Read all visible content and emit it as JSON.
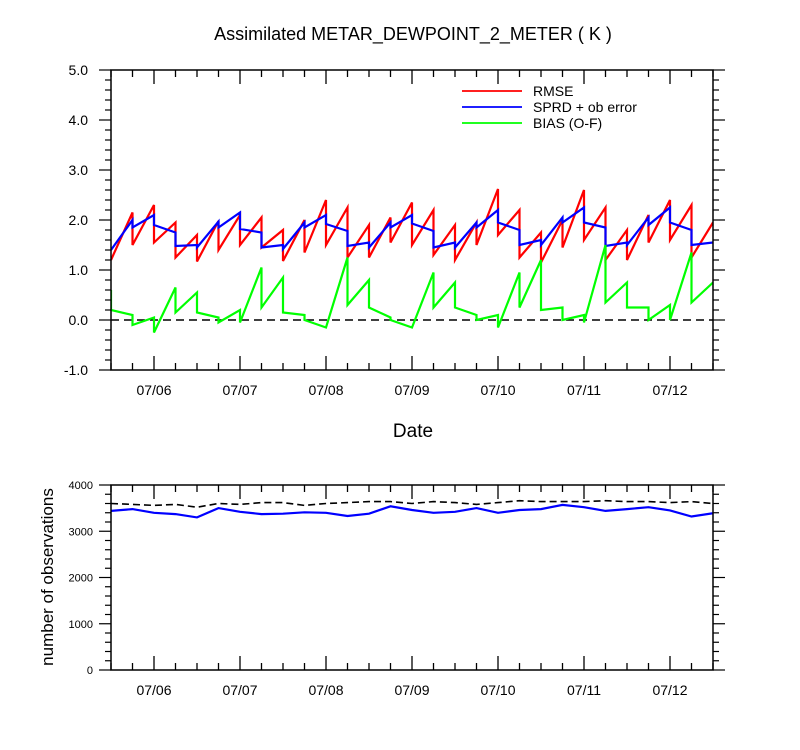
{
  "chart_data": [
    {
      "type": "line",
      "title": "Assimilated METAR_DEWPOINT_2_METER ( K )",
      "xlabel": "Date",
      "ylabel": "",
      "xlim": [
        5.5,
        12.5
      ],
      "ylim": [
        -1.0,
        5.0
      ],
      "yticks": [
        -1.0,
        0.0,
        1.0,
        2.0,
        3.0,
        4.0,
        5.0
      ],
      "ytick_labels": [
        "-1.0",
        "0.0",
        "1.0",
        "2.0",
        "3.0",
        "4.0",
        "5.0"
      ],
      "xticks": [
        6,
        7,
        8,
        9,
        10,
        11,
        12
      ],
      "xtick_labels": [
        "07/06",
        "07/07",
        "07/08",
        "07/09",
        "07/10",
        "07/11",
        "07/12"
      ],
      "reference_line": {
        "y": 0.0,
        "style": "dashed",
        "color": "#000000"
      },
      "legend_position": "top-right",
      "series": [
        {
          "name": "RMSE",
          "color": "#ff0000",
          "points": [
            [
              5.5,
              1.2
            ],
            [
              5.75,
              2.15
            ],
            [
              5.75,
              1.5
            ],
            [
              6.0,
              2.3
            ],
            [
              6.0,
              1.55
            ],
            [
              6.25,
              1.95
            ],
            [
              6.25,
              1.25
            ],
            [
              6.5,
              1.7
            ],
            [
              6.5,
              1.17
            ],
            [
              6.75,
              1.98
            ],
            [
              6.75,
              1.4
            ],
            [
              7.0,
              2.1
            ],
            [
              7.0,
              1.5
            ],
            [
              7.25,
              2.05
            ],
            [
              7.25,
              1.45
            ],
            [
              7.5,
              1.8
            ],
            [
              7.5,
              1.18
            ],
            [
              7.75,
              2.0
            ],
            [
              7.75,
              1.35
            ],
            [
              8.0,
              2.4
            ],
            [
              8.0,
              1.5
            ],
            [
              8.25,
              2.25
            ],
            [
              8.25,
              1.25
            ],
            [
              8.5,
              1.9
            ],
            [
              8.5,
              1.25
            ],
            [
              8.75,
              2.05
            ],
            [
              8.75,
              1.55
            ],
            [
              9.0,
              2.35
            ],
            [
              9.0,
              1.5
            ],
            [
              9.25,
              2.2
            ],
            [
              9.25,
              1.3
            ],
            [
              9.5,
              1.9
            ],
            [
              9.5,
              1.2
            ],
            [
              9.75,
              1.95
            ],
            [
              9.75,
              1.5
            ],
            [
              10.0,
              2.62
            ],
            [
              10.0,
              1.7
            ],
            [
              10.25,
              2.2
            ],
            [
              10.25,
              1.25
            ],
            [
              10.5,
              1.75
            ],
            [
              10.5,
              1.15
            ],
            [
              10.75,
              2.0
            ],
            [
              10.75,
              1.45
            ],
            [
              11.0,
              2.6
            ],
            [
              11.0,
              1.6
            ],
            [
              11.25,
              2.25
            ],
            [
              11.25,
              1.2
            ],
            [
              11.5,
              1.8
            ],
            [
              11.5,
              1.2
            ],
            [
              11.75,
              2.1
            ],
            [
              11.75,
              1.55
            ],
            [
              12.0,
              2.4
            ],
            [
              12.0,
              1.6
            ],
            [
              12.25,
              2.3
            ],
            [
              12.25,
              1.25
            ],
            [
              12.5,
              1.95
            ]
          ]
        },
        {
          "name": "SPRD + ob error",
          "color": "#0000ff",
          "points": [
            [
              5.5,
              1.4
            ],
            [
              5.75,
              2.0
            ],
            [
              5.75,
              1.85
            ],
            [
              6.0,
              2.1
            ],
            [
              6.0,
              1.9
            ],
            [
              6.25,
              1.75
            ],
            [
              6.25,
              1.48
            ],
            [
              6.5,
              1.5
            ],
            [
              6.5,
              1.45
            ],
            [
              6.75,
              1.97
            ],
            [
              6.75,
              1.85
            ],
            [
              7.0,
              2.15
            ],
            [
              7.0,
              1.82
            ],
            [
              7.25,
              1.75
            ],
            [
              7.25,
              1.45
            ],
            [
              7.5,
              1.5
            ],
            [
              7.5,
              1.42
            ],
            [
              7.75,
              1.95
            ],
            [
              7.75,
              1.85
            ],
            [
              8.0,
              2.1
            ],
            [
              8.0,
              1.92
            ],
            [
              8.25,
              1.78
            ],
            [
              8.25,
              1.48
            ],
            [
              8.5,
              1.55
            ],
            [
              8.5,
              1.45
            ],
            [
              8.75,
              1.95
            ],
            [
              8.75,
              1.85
            ],
            [
              9.0,
              2.1
            ],
            [
              9.0,
              1.93
            ],
            [
              9.25,
              1.78
            ],
            [
              9.25,
              1.45
            ],
            [
              9.5,
              1.55
            ],
            [
              9.5,
              1.45
            ],
            [
              9.75,
              1.95
            ],
            [
              9.75,
              1.85
            ],
            [
              10.0,
              2.2
            ],
            [
              10.0,
              1.95
            ],
            [
              10.25,
              1.8
            ],
            [
              10.25,
              1.5
            ],
            [
              10.5,
              1.6
            ],
            [
              10.5,
              1.5
            ],
            [
              10.75,
              2.05
            ],
            [
              10.75,
              1.95
            ],
            [
              11.0,
              2.25
            ],
            [
              11.0,
              1.95
            ],
            [
              11.25,
              1.85
            ],
            [
              11.25,
              1.48
            ],
            [
              11.5,
              1.55
            ],
            [
              11.5,
              1.5
            ],
            [
              11.75,
              2.05
            ],
            [
              11.75,
              1.9
            ],
            [
              12.0,
              2.25
            ],
            [
              12.0,
              1.95
            ],
            [
              12.25,
              1.8
            ],
            [
              12.25,
              1.5
            ],
            [
              12.5,
              1.55
            ]
          ]
        },
        {
          "name": "BIAS (O-F)",
          "color": "#00ff00",
          "points": [
            [
              5.5,
              0.6
            ],
            [
              5.5,
              0.2
            ],
            [
              5.75,
              0.1
            ],
            [
              5.75,
              -0.1
            ],
            [
              6.0,
              0.05
            ],
            [
              6.0,
              -0.25
            ],
            [
              6.25,
              0.65
            ],
            [
              6.25,
              0.15
            ],
            [
              6.5,
              0.55
            ],
            [
              6.5,
              0.15
            ],
            [
              6.75,
              0.05
            ],
            [
              6.75,
              -0.05
            ],
            [
              7.0,
              0.2
            ],
            [
              7.0,
              -0.05
            ],
            [
              7.25,
              1.05
            ],
            [
              7.25,
              0.25
            ],
            [
              7.5,
              0.85
            ],
            [
              7.5,
              0.15
            ],
            [
              7.75,
              0.1
            ],
            [
              7.75,
              0.0
            ],
            [
              8.0,
              -0.15
            ],
            [
              8.25,
              1.25
            ],
            [
              8.25,
              0.3
            ],
            [
              8.5,
              0.8
            ],
            [
              8.5,
              0.25
            ],
            [
              8.75,
              0.05
            ],
            [
              8.75,
              0.0
            ],
            [
              9.0,
              -0.15
            ],
            [
              9.25,
              0.95
            ],
            [
              9.25,
              0.25
            ],
            [
              9.5,
              0.75
            ],
            [
              9.5,
              0.25
            ],
            [
              9.75,
              0.1
            ],
            [
              9.75,
              0.0
            ],
            [
              10.0,
              0.1
            ],
            [
              10.0,
              -0.15
            ],
            [
              10.25,
              0.95
            ],
            [
              10.25,
              0.25
            ],
            [
              10.5,
              1.2
            ],
            [
              10.5,
              0.2
            ],
            [
              10.75,
              0.25
            ],
            [
              10.75,
              0.0
            ],
            [
              11.0,
              0.1
            ],
            [
              11.0,
              -0.05
            ],
            [
              11.25,
              1.5
            ],
            [
              11.25,
              0.35
            ],
            [
              11.5,
              0.75
            ],
            [
              11.5,
              0.25
            ],
            [
              11.75,
              0.25
            ],
            [
              11.75,
              0.0
            ],
            [
              12.0,
              0.3
            ],
            [
              12.0,
              0.0
            ],
            [
              12.25,
              1.35
            ],
            [
              12.25,
              0.35
            ],
            [
              12.5,
              0.75
            ]
          ]
        }
      ]
    },
    {
      "type": "line",
      "title": "",
      "xlabel": "",
      "ylabel": "number of observations",
      "xlim": [
        5.5,
        12.5
      ],
      "ylim": [
        0,
        4000
      ],
      "yticks": [
        0,
        1000,
        2000,
        3000,
        4000
      ],
      "ytick_labels": [
        "0",
        "1000",
        "2000",
        "3000",
        "4000"
      ],
      "xticks": [
        6,
        7,
        8,
        9,
        10,
        11,
        12
      ],
      "xtick_labels": [
        "07/06",
        "07/07",
        "07/08",
        "07/09",
        "07/10",
        "07/11",
        "07/12"
      ],
      "series": [
        {
          "style": "dashed",
          "color": "#000000",
          "x": [
            5.5,
            5.75,
            6.0,
            6.25,
            6.5,
            6.75,
            7.0,
            7.25,
            7.5,
            7.75,
            8.0,
            8.25,
            8.5,
            8.75,
            9.0,
            9.25,
            9.5,
            9.75,
            10.0,
            10.25,
            10.5,
            10.75,
            11.0,
            11.25,
            11.5,
            11.75,
            12.0,
            12.25,
            12.5
          ],
          "y": [
            3600,
            3580,
            3560,
            3580,
            3520,
            3600,
            3580,
            3620,
            3620,
            3560,
            3600,
            3620,
            3640,
            3640,
            3600,
            3640,
            3620,
            3580,
            3620,
            3660,
            3640,
            3640,
            3640,
            3660,
            3640,
            3640,
            3620,
            3640,
            3600
          ]
        },
        {
          "style": "solid",
          "color": "#0000ff",
          "x": [
            5.5,
            5.75,
            6.0,
            6.25,
            6.5,
            6.75,
            7.0,
            7.25,
            7.5,
            7.75,
            8.0,
            8.25,
            8.5,
            8.75,
            9.0,
            9.25,
            9.5,
            9.75,
            10.0,
            10.25,
            10.5,
            10.75,
            11.0,
            11.25,
            11.5,
            11.75,
            12.0,
            12.25,
            12.5
          ],
          "y": [
            3440,
            3480,
            3400,
            3370,
            3300,
            3500,
            3420,
            3370,
            3380,
            3410,
            3400,
            3330,
            3380,
            3540,
            3460,
            3400,
            3420,
            3500,
            3400,
            3460,
            3480,
            3570,
            3520,
            3440,
            3480,
            3520,
            3450,
            3320,
            3390
          ]
        }
      ]
    }
  ]
}
